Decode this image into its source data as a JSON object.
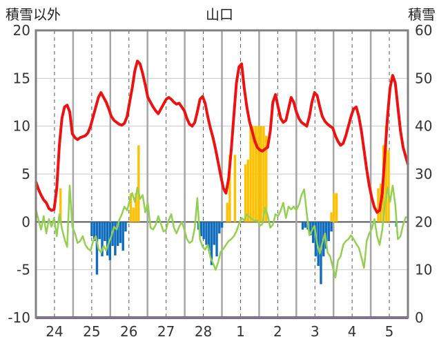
{
  "chart_data": {
    "type": "line+bar",
    "title": "山口",
    "ylabel_left": "積雪以外",
    "ylabel_right": "積雪",
    "ylim_left": [
      -10,
      20
    ],
    "ylim_right": [
      0,
      60
    ],
    "yticks_left": [
      "20",
      "15",
      "10",
      "5",
      "0",
      "-5",
      "-10"
    ],
    "yticks_right": [
      "60",
      "50",
      "40",
      "30",
      "20",
      "10",
      "0"
    ],
    "days": [
      "24",
      "25",
      "26",
      "27",
      "28",
      "1",
      "2",
      "3",
      "4",
      "5"
    ],
    "series": [
      {
        "name": "temperature",
        "color": "#ee1111",
        "axis": "left",
        "values": [
          4.2,
          3.4,
          2.8,
          2.3,
          2.0,
          1.4,
          1.2,
          1.3,
          3.5,
          8.0,
          10.8,
          12.0,
          12.2,
          11.5,
          9.2,
          8.8,
          8.6,
          8.8,
          8.9,
          9.0,
          9.3,
          10.0,
          11.0,
          12.0,
          13.0,
          13.5,
          13.0,
          12.5,
          11.8,
          11.0,
          10.6,
          10.4,
          10.2,
          10.1,
          10.3,
          11.0,
          12.5,
          14.0,
          15.8,
          16.8,
          16.5,
          15.5,
          14.3,
          13.0,
          12.5,
          12.0,
          11.6,
          11.3,
          11.8,
          12.3,
          12.8,
          13.0,
          12.8,
          12.5,
          12.3,
          12.4,
          12.0,
          11.6,
          10.8,
          10.2,
          10.0,
          10.4,
          11.5,
          12.8,
          13.1,
          12.4,
          11.0,
          9.8,
          8.8,
          7.6,
          6.2,
          4.8,
          3.5,
          3.0,
          4.5,
          7.5,
          11.0,
          14.5,
          16.2,
          16.5,
          14.0,
          12.0,
          10.5,
          9.5,
          8.5,
          7.8,
          7.5,
          7.4,
          7.6,
          7.8,
          9.5,
          12.5,
          13.3,
          12.0,
          10.8,
          10.4,
          10.6,
          11.8,
          13.0,
          12.5,
          11.5,
          10.8,
          10.4,
          10.2,
          10.0,
          11.0,
          12.5,
          13.5,
          13.2,
          12.0,
          11.0,
          10.5,
          10.2,
          10.0,
          9.8,
          9.0,
          8.4,
          8.0,
          8.2,
          9.0,
          10.0,
          11.0,
          11.8,
          12.0,
          11.0,
          9.5,
          7.5,
          5.5,
          3.8,
          2.5,
          1.5,
          1.0,
          1.2,
          3.0,
          7.0,
          11.0,
          14.0,
          15.3,
          14.5,
          12.0,
          9.5,
          7.8,
          6.8,
          6.0
        ],
        "days_per_point": 0.07
      },
      {
        "name": "wind",
        "color": "#92d050",
        "axis": "left",
        "values": [
          1.3,
          0.2,
          -0.8,
          0.6,
          -1.2,
          0.3,
          -0.5,
          0.4,
          -1.5,
          0.8,
          -0.7,
          -1.8,
          -2.6,
          3.8,
          -0.5,
          -1.2,
          -2.2,
          -2.0,
          -1.5,
          -2.4,
          -2.8,
          -3.0,
          -2.0,
          -1.5,
          -2.8,
          -3.2,
          -2.5,
          -3.0,
          -2.2,
          -1.5,
          -0.5,
          -0.8,
          0.2,
          0.8,
          1.6,
          1.2,
          2.2,
          3.0,
          2.1,
          3.6,
          2.4,
          2.8,
          1.0,
          2.0,
          -0.6,
          -0.8,
          -0.3,
          0.6,
          -0.2,
          -1.0,
          -0.8,
          0.2,
          0.8,
          -0.6,
          -1.2,
          -0.5,
          0.0,
          -0.8,
          -1.8,
          -2.2,
          -2.0,
          -0.6,
          2.5,
          -1.8,
          -2.6,
          -2.9,
          -2.4,
          -3.7,
          -4.3,
          -5.0,
          -4.2,
          -3.1,
          -2.8,
          -2.4,
          -2.0,
          -1.8,
          -1.5,
          -1.0,
          -0.2,
          0.4,
          0.2,
          0.8,
          0.5,
          0.3,
          0.1,
          0.2,
          -0.4,
          -0.2,
          1.5,
          0.7,
          -0.6,
          -0.3,
          0.8,
          0.6,
          1.2,
          2.0,
          0.4,
          1.6,
          1.3,
          1.6,
          1.2,
          1.8,
          2.8,
          3.4,
          0.9,
          -1.4,
          -0.9,
          -0.4,
          -2.3,
          -3.3,
          -2.2,
          -1.2,
          -3.2,
          -3.6,
          -4.7,
          -5.8,
          -4.0,
          -3.6,
          -2.4,
          -2.0,
          -1.8,
          -1.4,
          -1.8,
          -2.3,
          -2.7,
          -3.7,
          -4.8,
          -2.0,
          -1.2,
          -0.7,
          0.3,
          -1.5,
          -2.4,
          -0.8,
          1.8,
          3.6,
          2.1,
          3.8,
          1.8,
          -1.8,
          -1.5,
          -0.3,
          0.5,
          0.4
        ],
        "days_per_point": 0.07
      },
      {
        "name": "snow_depth",
        "color": "#ffc000",
        "axis": "right",
        "type": "bar",
        "values": [
          0,
          0,
          0,
          0,
          0,
          0,
          0,
          0,
          0,
          27,
          0,
          0,
          0,
          0,
          0,
          0,
          0,
          0,
          0,
          0,
          0,
          0,
          0,
          0,
          0,
          0,
          0,
          0,
          0,
          0,
          0,
          0,
          0,
          0,
          0,
          0,
          26,
          23,
          26,
          36,
          0,
          0,
          0,
          0,
          0,
          0,
          0,
          0,
          0,
          0,
          0,
          0,
          0,
          0,
          0,
          0,
          0,
          0,
          0,
          0,
          0,
          0,
          0,
          0,
          0,
          0,
          0,
          0,
          0,
          0,
          0,
          0,
          0,
          24,
          34,
          0,
          34,
          0,
          0,
          0,
          32,
          33,
          40,
          40,
          40,
          40,
          40,
          40,
          38,
          0,
          0,
          0,
          0,
          0,
          0,
          0,
          0,
          0,
          0,
          0,
          0,
          0,
          0,
          0,
          0,
          0,
          0,
          0,
          0,
          0,
          0,
          0,
          0,
          22,
          26,
          26,
          0,
          0,
          0,
          0,
          0,
          0,
          0,
          0,
          0,
          0,
          0,
          0,
          0,
          0,
          0,
          27,
          28,
          36,
          40,
          35,
          0,
          0,
          0,
          0,
          0,
          0,
          0,
          0,
          0,
          0,
          0,
          34,
          40,
          40,
          40,
          40,
          40,
          34,
          0
        ],
        "days_per_point": 0.07
      },
      {
        "name": "negative_bars",
        "color": "#0f6cbd",
        "axis": "left",
        "type": "bar",
        "values": [
          0,
          0,
          0,
          0,
          0,
          0,
          0,
          0,
          0,
          0,
          0,
          0,
          0,
          0,
          0,
          0,
          0,
          0,
          0,
          0,
          0,
          -1.5,
          -2.0,
          -5.5,
          -1.8,
          -3.6,
          -2.0,
          -3.5,
          -4.0,
          -2.5,
          -3.5,
          -2.5,
          -2.2,
          -3.0,
          -1.0,
          0,
          0,
          0,
          0,
          0,
          0,
          0,
          0,
          0,
          0,
          0,
          0,
          0,
          0,
          0,
          0,
          0,
          0,
          0,
          0,
          0,
          0,
          0,
          0,
          0,
          0,
          0,
          -0.8,
          -1.5,
          -1.8,
          -2.4,
          -3.0,
          -4.5,
          -2.4,
          -3.6,
          -1.2,
          -0.6,
          0,
          0,
          0,
          0,
          0,
          0,
          0,
          0,
          0,
          0,
          0,
          0,
          0,
          0,
          0,
          0,
          0,
          0,
          0,
          0,
          0,
          0,
          0,
          0,
          0,
          0,
          0,
          0,
          0,
          0,
          -0.8,
          -0.6,
          -0.8,
          -1.4,
          -2.2,
          -3.6,
          -4.6,
          -6.5,
          -3.6,
          -2.8,
          -2.0,
          -1.0,
          0,
          0,
          0,
          0,
          0,
          0,
          0,
          0,
          0,
          0,
          0,
          0,
          0,
          0,
          0,
          0,
          0,
          0,
          0,
          0,
          0,
          0,
          0,
          0,
          -0.5,
          0,
          0,
          0,
          0,
          0,
          0,
          0,
          0,
          0,
          0,
          0,
          0,
          0
        ],
        "days_per_point": 0.07
      },
      {
        "name": "baseline",
        "color": "#7030a0",
        "axis": "left",
        "values": [
          -10,
          -10
        ]
      }
    ]
  }
}
